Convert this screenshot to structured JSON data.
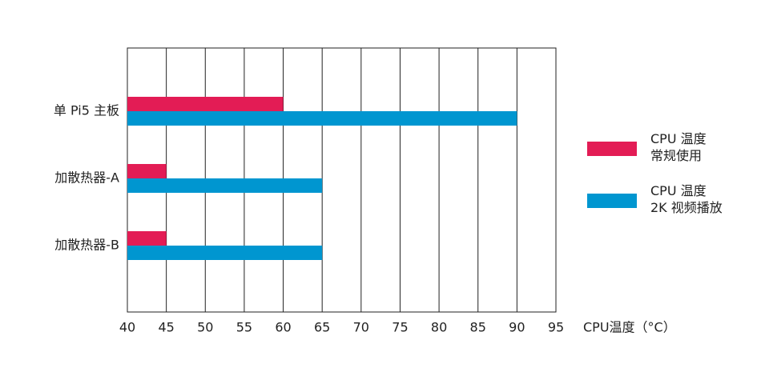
{
  "chart_data": {
    "type": "hbar",
    "categories": [
      "单 Pi5 主板",
      "加散热器-A",
      "加散热器-B"
    ],
    "series": [
      {
        "name": "CPU 温度\n常规使用",
        "color": "#e31c55",
        "values": [
          60,
          45,
          45
        ]
      },
      {
        "name": "CPU 温度\n2K 视频播放",
        "color": "#0096d0",
        "values": [
          90,
          65,
          65
        ]
      }
    ],
    "x_label": "CPU温度（°C）",
    "xlim": [
      40,
      95
    ],
    "xticks": [
      40,
      45,
      50,
      55,
      60,
      65,
      70,
      75,
      80,
      85,
      90,
      95
    ],
    "grid": true,
    "legend": "right"
  }
}
